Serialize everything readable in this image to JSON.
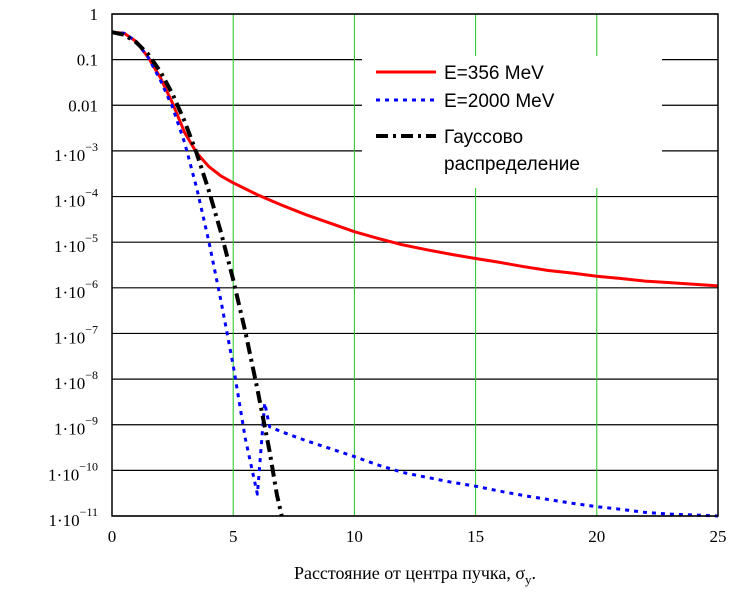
{
  "chart_data": {
    "type": "line",
    "xlabel": "Расстояние от центра пучка, σ",
    "xlabel_sub": "y",
    "xlabel_suffix": ".",
    "x_range": [
      0,
      25
    ],
    "x_ticks": [
      "0",
      "5",
      "10",
      "15",
      "20",
      "25"
    ],
    "y_scale": "log",
    "y_range": [
      1e-11,
      1
    ],
    "y_ticks": [
      {
        "text": "1",
        "exp": ""
      },
      {
        "text": "0.1",
        "exp": ""
      },
      {
        "text": "0.01",
        "exp": ""
      },
      {
        "text": "1·10",
        "exp": "−3"
      },
      {
        "text": "1·10",
        "exp": "−4"
      },
      {
        "text": "1·10",
        "exp": "−5"
      },
      {
        "text": "1·10",
        "exp": "−6"
      },
      {
        "text": "1·10",
        "exp": "−7"
      },
      {
        "text": "1·10",
        "exp": "−8"
      },
      {
        "text": "1·10",
        "exp": "−9"
      },
      {
        "text": "1·10",
        "exp": "−10"
      },
      {
        "text": "1·10",
        "exp": "−11"
      }
    ],
    "grid": {
      "horizontal": "black",
      "vertical": "green"
    },
    "legend_position": "top-right",
    "series": [
      {
        "name": "E=356 MeV",
        "color": "#ff0000",
        "style": "solid",
        "x": [
          0,
          0.5,
          1,
          1.5,
          2,
          2.5,
          3,
          3.5,
          4,
          4.5,
          5,
          6,
          7,
          8,
          9,
          10,
          11,
          12,
          13,
          14,
          15,
          16,
          17,
          18,
          19,
          20,
          21,
          22,
          23,
          24,
          25
        ],
        "y": [
          0.4,
          0.38,
          0.25,
          0.11,
          0.04,
          0.011,
          0.0025,
          0.0009,
          0.00045,
          0.00028,
          0.0002,
          0.00011,
          6.5e-05,
          4e-05,
          2.6e-05,
          1.7e-05,
          1.2e-05,
          8.7e-06,
          6.8e-06,
          5.4e-06,
          4.4e-06,
          3.6e-06,
          2.9e-06,
          2.4e-06,
          2.1e-06,
          1.8e-06,
          1.6e-06,
          1.4e-06,
          1.3e-06,
          1.2e-06,
          1.1e-06
        ]
      },
      {
        "name": "E=2000 MeV",
        "color": "#0000ff",
        "style": "dotted",
        "x": [
          0,
          0.5,
          1,
          1.5,
          2,
          2.5,
          3,
          3.5,
          4,
          4.5,
          5,
          5.5,
          6,
          6.3,
          6.5,
          7,
          8,
          9,
          10,
          11,
          12,
          13,
          14,
          15,
          16,
          17,
          18,
          19,
          20,
          21,
          22,
          23,
          24,
          25
        ],
        "y": [
          0.4,
          0.38,
          0.25,
          0.11,
          0.035,
          0.009,
          0.0015,
          0.00015,
          1e-05,
          5e-07,
          2e-08,
          5e-10,
          3e-11,
          3e-09,
          9e-10,
          7e-10,
          4.5e-10,
          3e-10,
          2e-10,
          1.3e-10,
          9e-11,
          7e-11,
          5.5e-11,
          4.5e-11,
          3.5e-11,
          2.8e-11,
          2.3e-11,
          1.9e-11,
          1.6e-11,
          1.4e-11,
          1.2e-11,
          1.1e-11,
          1.05e-11,
          1e-11
        ]
      },
      {
        "name": "Гауссово",
        "name_line2": "распределение",
        "color": "#000000",
        "style": "dashdot",
        "x": [
          0,
          0.5,
          1,
          1.5,
          2,
          2.5,
          3,
          3.5,
          4,
          4.5,
          5,
          5.5,
          6,
          6.5,
          6.8,
          7
        ],
        "y": [
          0.4,
          0.35,
          0.24,
          0.13,
          0.054,
          0.0175,
          0.0044,
          0.00087,
          0.00013,
          1.6e-05,
          1.5e-06,
          1.1e-07,
          6e-09,
          2.6e-10,
          3e-11,
          1e-11
        ]
      }
    ]
  }
}
